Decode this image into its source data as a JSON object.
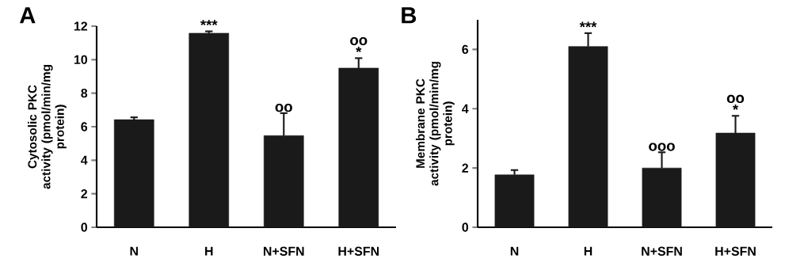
{
  "chart_data": [
    {
      "type": "bar",
      "title": "A",
      "ylabel": "Cytosolic PKC activity (pmol/min/mg protein)",
      "categories": [
        "N",
        "H",
        "N+SFN",
        "H+SFN"
      ],
      "color": "#1a1a1a",
      "values": [
        6.42,
        11.58,
        5.47,
        9.5
      ],
      "errors": [
        0.14,
        0.11,
        1.34,
        0.59
      ],
      "ylim": [
        0,
        12
      ],
      "yticks": [
        0,
        2,
        4,
        6,
        8,
        10,
        12
      ],
      "annotations": [
        {
          "text": "***",
          "x": "H",
          "y": 11.69
        },
        {
          "text": "oo",
          "x": "N+SFN",
          "y": 6.81
        },
        {
          "text": "*",
          "x": "H+SFN",
          "y": 10.09
        },
        {
          "text": "oo",
          "x": "H+SFN",
          "y": 10.09
        }
      ]
    },
    {
      "type": "bar",
      "title": "B",
      "ylabel": "Membrane PKC activity (pmol/min/mg protein)",
      "categories": [
        "N",
        "H",
        "N+SFN",
        "H+SFN"
      ],
      "color": "#1a1a1a",
      "values": [
        1.77,
        6.1,
        2.0,
        3.18
      ],
      "errors": [
        0.16,
        0.45,
        0.53,
        0.58
      ],
      "ylim": [
        0,
        7
      ],
      "yticks": [
        0,
        2,
        4,
        6
      ],
      "annotations": [
        {
          "text": "***",
          "x": "H",
          "y": 6.55
        },
        {
          "text": "ooo",
          "x": "N+SFN",
          "y": 2.53
        },
        {
          "text": "*",
          "x": "H+SFN",
          "y": 3.76
        },
        {
          "text": "oo",
          "x": "H+SFN",
          "y": 3.76
        }
      ]
    }
  ]
}
